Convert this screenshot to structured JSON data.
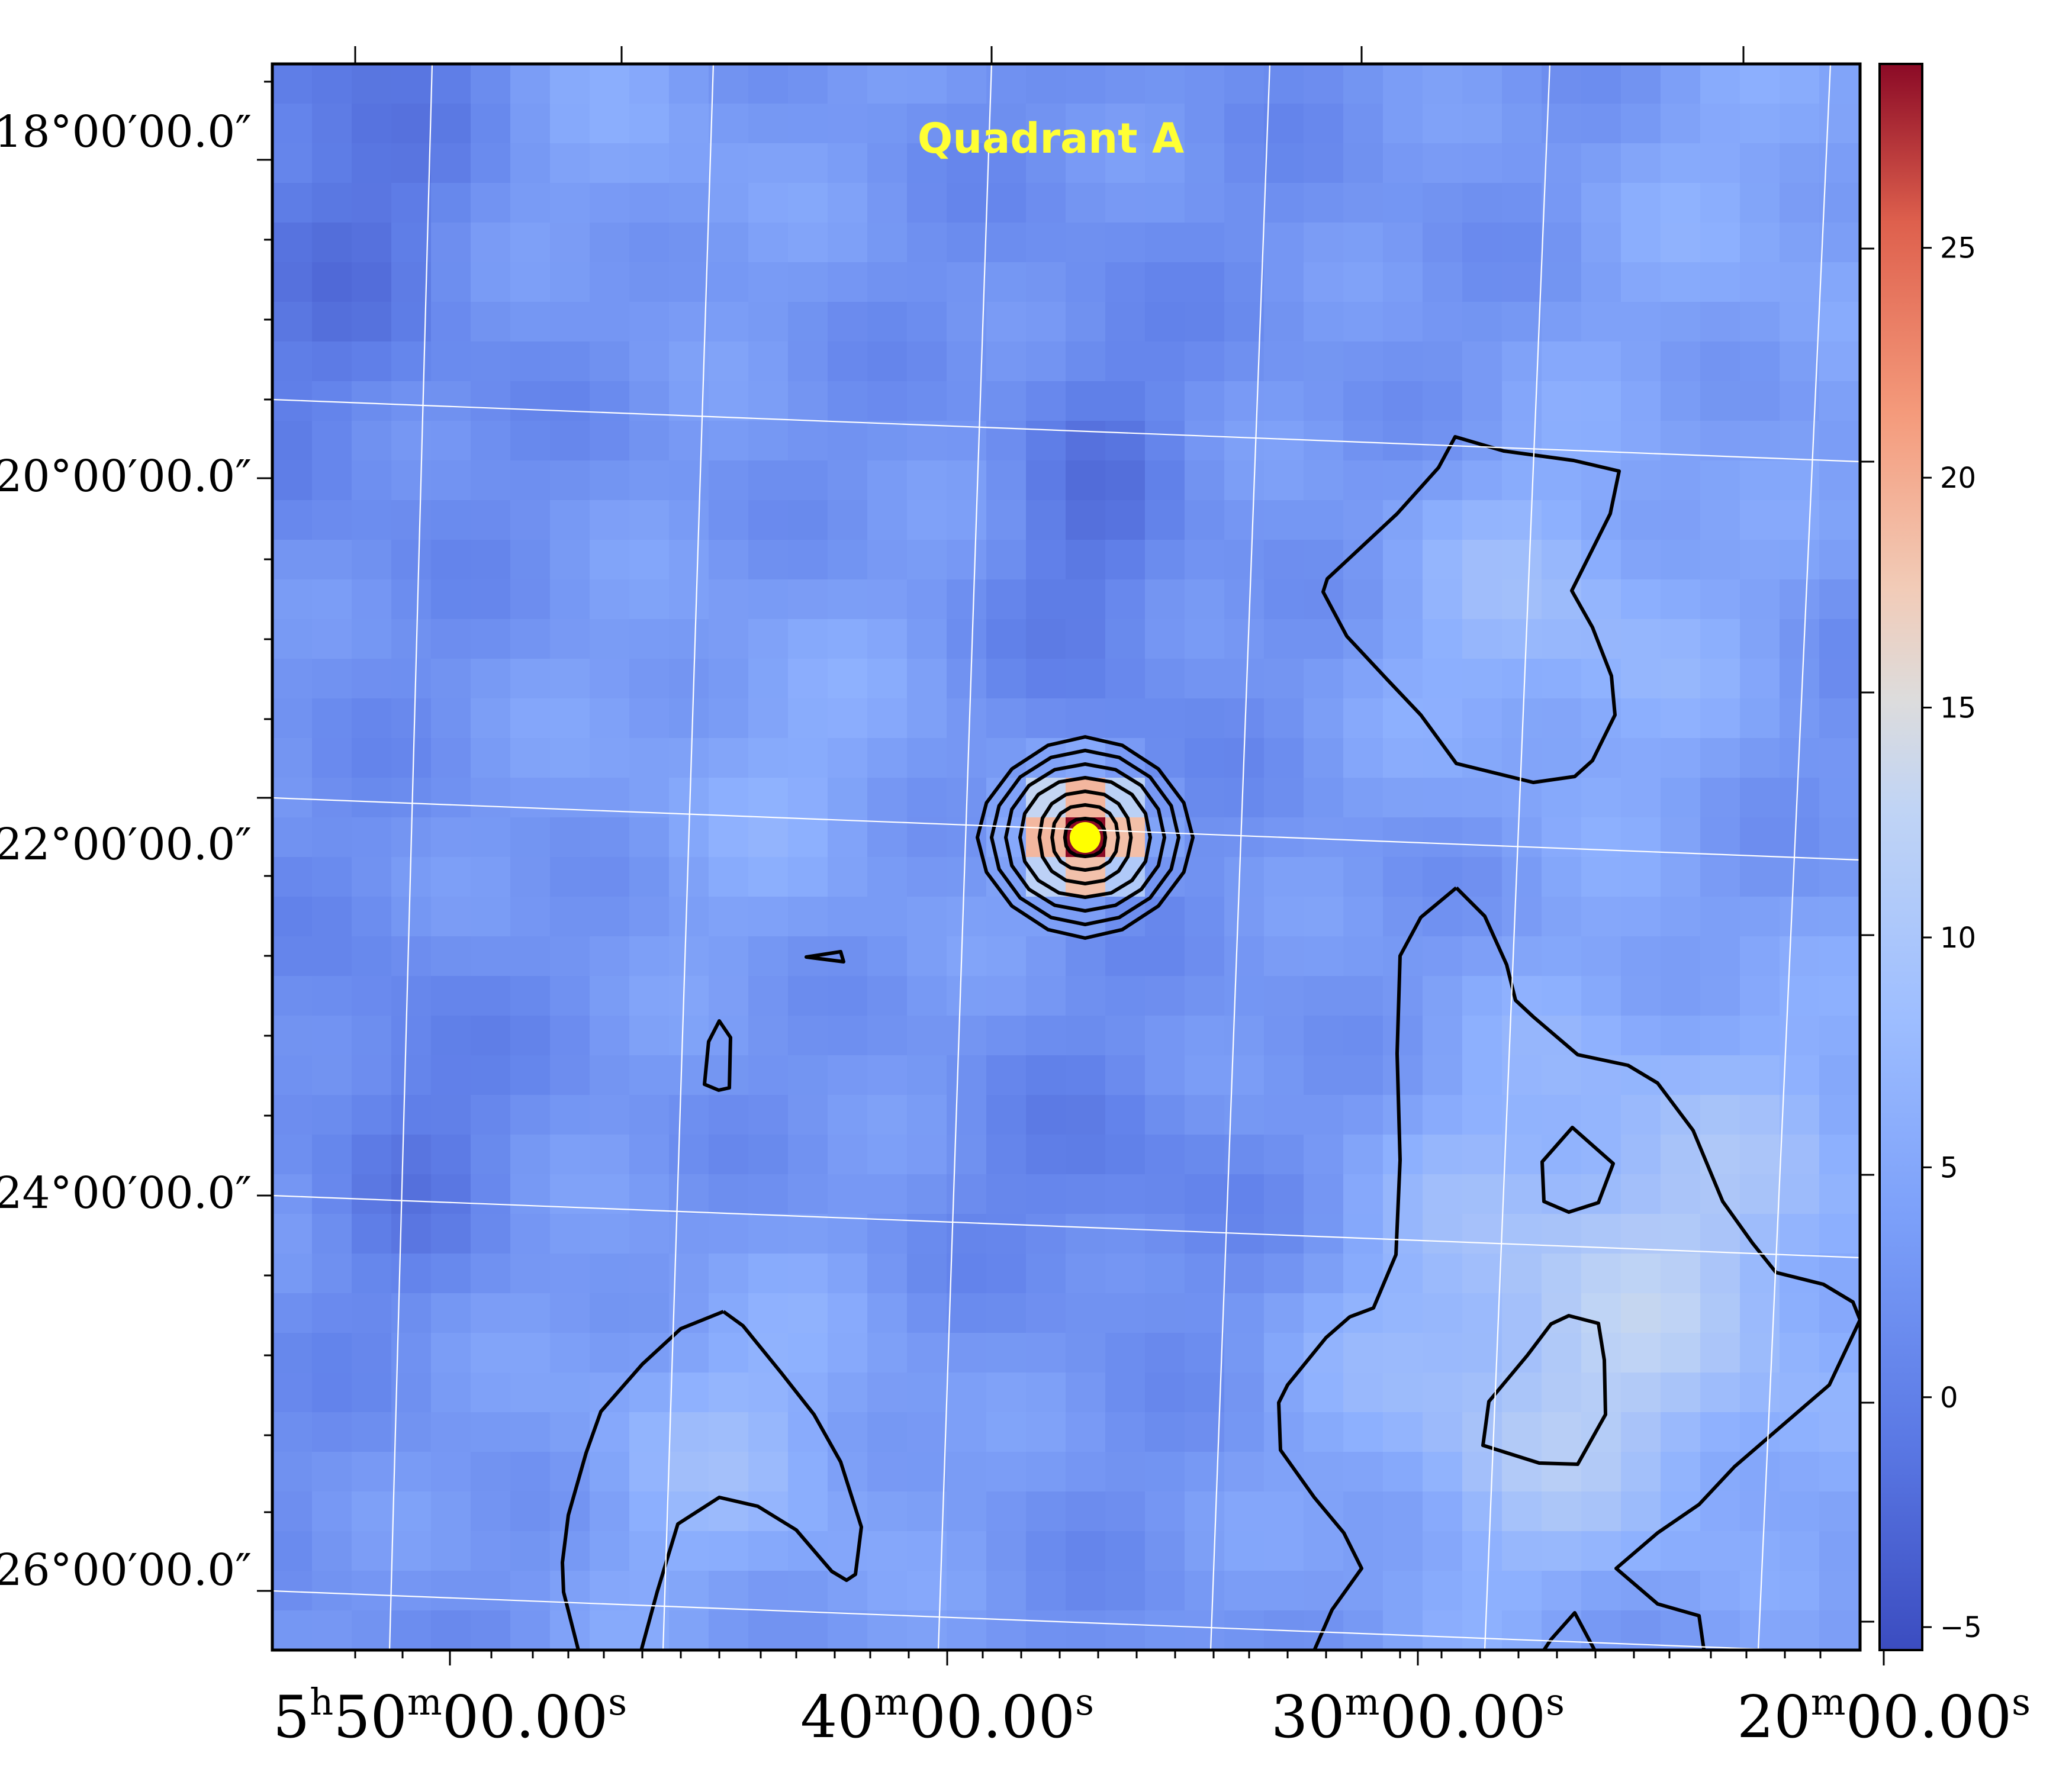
{
  "title": "Quadrant A",
  "colors": {
    "title": "#ffff33",
    "marker": "#ffff00",
    "contour": "#000000",
    "grid": "#ffffff",
    "colormap": "coolwarm"
  },
  "chart_data": {
    "type": "heatmap",
    "projection": "celestial image (RA / Dec) with coordinate grid",
    "colormap": "coolwarm",
    "grid": true,
    "x_axis": {
      "tick_labels": [
        {
          "h": "5",
          "m": "50",
          "s": "00.00"
        },
        {
          "h": "",
          "m": "40",
          "s": "00.00"
        },
        {
          "h": "",
          "m": "30",
          "s": "00.00"
        },
        {
          "h": "",
          "m": "20",
          "s": "00.00"
        }
      ]
    },
    "y_axis": {
      "tick_labels": [
        "18°00′00.0″",
        "20°00′00.0″",
        "22°00′00.0″",
        "24°00′00.0″",
        "26°00′00.0″"
      ]
    },
    "colorbar": {
      "range": [
        -5.5,
        29
      ],
      "ticks": [
        -5,
        0,
        5,
        10,
        15,
        20,
        25
      ],
      "tick_labels": [
        "−5",
        "0",
        "5",
        "10",
        "15",
        "20",
        "25"
      ]
    },
    "peak_source": {
      "ra": "5h36m",
      "dec": "22°00′",
      "value": 29
    },
    "contour_levels_at_peak": 7
  }
}
